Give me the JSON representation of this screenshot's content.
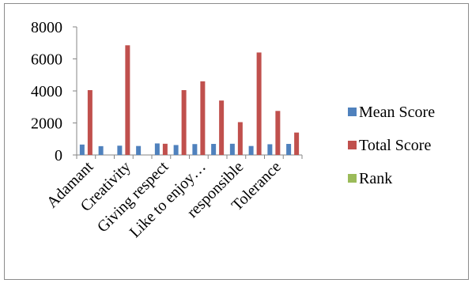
{
  "chart_data": {
    "type": "bar",
    "categories": [
      "Adamant",
      "",
      "Creativity",
      "",
      "Giving respect",
      "",
      "Like to enjoy…",
      "",
      "responsible",
      "",
      "Tolerance",
      ""
    ],
    "series": [
      {
        "name": "Mean Score",
        "color": "#4f81bd",
        "values": [
          650,
          550,
          580,
          560,
          720,
          620,
          680,
          690,
          700,
          560,
          670,
          690
        ]
      },
      {
        "name": "Total Score",
        "color": "#c0504d",
        "values": [
          4050,
          null,
          6850,
          null,
          700,
          4050,
          4600,
          3400,
          2050,
          6400,
          2750,
          1400
        ]
      },
      {
        "name": "Rank",
        "color": "#9bbb59",
        "values": [
          null,
          null,
          null,
          null,
          null,
          null,
          null,
          null,
          null,
          null,
          null,
          null
        ]
      }
    ],
    "ylim": [
      0,
      8000
    ],
    "yticks": [
      "0",
      "2000",
      "4000",
      "6000",
      "8000"
    ],
    "grid": false,
    "legend": "right"
  }
}
